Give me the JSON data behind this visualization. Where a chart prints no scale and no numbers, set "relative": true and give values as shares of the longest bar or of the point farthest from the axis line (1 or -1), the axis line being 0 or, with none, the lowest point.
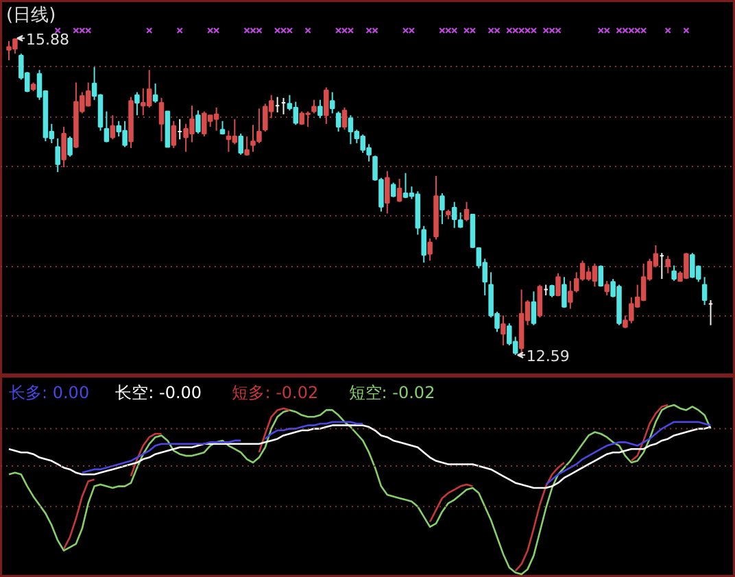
{
  "chart_data": [
    {
      "type": "candlestick",
      "title": "(日线)",
      "grid": "y",
      "tick_labels": false,
      "ylim": [
        12.37,
        16.27
      ],
      "yticks": [
        {
          "value": 12.99,
          "label": null
        },
        {
          "value": 13.51,
          "label": null
        },
        {
          "value": 14.03,
          "label": null
        },
        {
          "value": 14.55,
          "label": null
        },
        {
          "value": 15.06,
          "label": null
        },
        {
          "value": 15.58,
          "label": null
        }
      ],
      "categories": [
        null,
        null,
        null,
        null,
        null,
        null,
        null,
        null,
        null,
        null,
        null,
        null,
        null,
        null,
        null,
        null,
        null,
        null,
        null,
        null,
        null,
        null,
        null,
        null,
        null,
        null,
        null,
        null,
        null,
        null,
        null,
        null,
        null,
        null,
        null,
        null,
        null,
        null,
        null,
        null,
        null,
        null,
        null,
        null,
        null,
        null,
        null,
        null,
        null,
        null,
        null,
        null,
        null,
        null,
        null,
        null,
        null,
        null,
        null,
        null,
        null,
        null,
        null,
        null,
        null,
        null,
        null,
        null,
        null,
        null,
        null,
        null,
        null,
        null,
        null,
        null,
        null,
        null,
        null,
        null,
        null,
        null,
        null,
        null,
        null,
        null,
        null,
        null,
        null,
        null,
        null,
        null,
        null,
        null,
        null,
        null,
        null,
        null,
        null,
        null,
        null,
        null,
        null,
        null,
        null,
        null,
        null,
        null,
        null,
        null,
        null,
        null,
        null,
        null,
        null,
        null
      ],
      "ohlc": [
        [
          15.76,
          15.85,
          15.65,
          15.79
        ],
        [
          15.77,
          15.88,
          15.72,
          15.87
        ],
        [
          15.7,
          15.72,
          15.45,
          15.47
        ],
        [
          15.52,
          15.53,
          15.32,
          15.33
        ],
        [
          15.35,
          15.42,
          15.33,
          15.4
        ],
        [
          15.51,
          15.55,
          15.24,
          15.27
        ],
        [
          15.33,
          15.34,
          14.81,
          14.85
        ],
        [
          14.91,
          14.99,
          14.79,
          14.84
        ],
        [
          14.75,
          14.84,
          14.49,
          14.57
        ],
        [
          14.62,
          14.96,
          14.54,
          14.89
        ],
        [
          14.84,
          14.86,
          14.65,
          14.67
        ],
        [
          14.75,
          15.42,
          14.74,
          15.22
        ],
        [
          15.12,
          15.32,
          15.1,
          15.28
        ],
        [
          15.18,
          15.42,
          15.17,
          15.33
        ],
        [
          15.41,
          15.58,
          15.24,
          15.28
        ],
        [
          15.29,
          15.3,
          14.92,
          14.96
        ],
        [
          14.94,
          15.12,
          14.8,
          14.81
        ],
        [
          14.85,
          15.08,
          14.83,
          14.97
        ],
        [
          14.97,
          15.02,
          14.86,
          14.91
        ],
        [
          14.92,
          15.02,
          14.75,
          14.77
        ],
        [
          14.81,
          15.27,
          14.74,
          15.23
        ],
        [
          15.29,
          15.32,
          15.08,
          15.21
        ],
        [
          15.18,
          15.36,
          15.08,
          15.21
        ],
        [
          15.18,
          15.55,
          15.16,
          15.35
        ],
        [
          15.29,
          15.41,
          15.21,
          15.23
        ],
        [
          14.99,
          15.26,
          14.81,
          15.21
        ],
        [
          15.12,
          15.12,
          14.75,
          14.75
        ],
        [
          14.77,
          15.02,
          14.74,
          14.97
        ],
        [
          14.91,
          15.04,
          14.83,
          14.91
        ],
        [
          14.85,
          14.99,
          14.7,
          14.94
        ],
        [
          14.89,
          15.18,
          14.8,
          15.04
        ],
        [
          15.08,
          15.13,
          14.89,
          14.91
        ],
        [
          14.89,
          15.12,
          14.86,
          15.1
        ],
        [
          15.02,
          15.08,
          14.96,
          15.08
        ],
        [
          15.04,
          15.16,
          14.92,
          15.09
        ],
        [
          14.93,
          15.02,
          14.88,
          14.89
        ],
        [
          14.83,
          14.92,
          14.7,
          14.86
        ],
        [
          14.8,
          15.04,
          14.78,
          14.86
        ],
        [
          14.86,
          14.89,
          14.67,
          14.69
        ],
        [
          14.67,
          14.86,
          14.66,
          14.72
        ],
        [
          14.77,
          14.98,
          14.7,
          14.81
        ],
        [
          14.81,
          15.15,
          14.79,
          14.91
        ],
        [
          14.93,
          15.2,
          14.91,
          15.17
        ],
        [
          15.12,
          15.29,
          15.05,
          15.23
        ],
        [
          15.18,
          15.27,
          15.11,
          15.18
        ],
        [
          15.21,
          15.26,
          15.09,
          15.21
        ],
        [
          15.2,
          15.29,
          15.13,
          15.15
        ],
        [
          15.16,
          15.22,
          14.98,
          15.0
        ],
        [
          14.99,
          15.12,
          14.98,
          15.1
        ],
        [
          15.09,
          15.12,
          14.96,
          15.1
        ],
        [
          15.12,
          15.24,
          15.1,
          15.17
        ],
        [
          15.17,
          15.24,
          15.05,
          15.08
        ],
        [
          15.08,
          15.37,
          14.99,
          15.34
        ],
        [
          15.23,
          15.32,
          15.1,
          15.15
        ],
        [
          15.1,
          15.12,
          14.91,
          14.96
        ],
        [
          14.96,
          15.16,
          14.93,
          15.13
        ],
        [
          15.05,
          15.08,
          14.78,
          14.91
        ],
        [
          14.91,
          14.93,
          14.79,
          14.84
        ],
        [
          14.86,
          14.88,
          14.69,
          14.72
        ],
        [
          14.74,
          14.78,
          14.6,
          14.67
        ],
        [
          14.65,
          14.66,
          14.4,
          14.41
        ],
        [
          14.41,
          14.43,
          14.08,
          14.13
        ],
        [
          14.17,
          14.5,
          14.06,
          14.43
        ],
        [
          14.36,
          14.38,
          14.23,
          14.24
        ],
        [
          14.19,
          14.42,
          14.18,
          14.32
        ],
        [
          14.27,
          14.48,
          14.22,
          14.23
        ],
        [
          14.27,
          14.34,
          14.21,
          14.24
        ],
        [
          14.26,
          14.29,
          13.84,
          13.91
        ],
        [
          13.89,
          13.93,
          13.55,
          13.63
        ],
        [
          13.64,
          13.8,
          13.57,
          13.76
        ],
        [
          13.82,
          14.45,
          13.79,
          14.24
        ],
        [
          14.24,
          14.27,
          13.95,
          14.1
        ],
        [
          14.05,
          14.1,
          14.0,
          14.08
        ],
        [
          14.12,
          14.18,
          13.91,
          14.0
        ],
        [
          13.99,
          14.07,
          13.91,
          13.92
        ],
        [
          14.0,
          14.18,
          13.98,
          14.1
        ],
        [
          14.05,
          14.05,
          13.7,
          13.71
        ],
        [
          13.7,
          13.71,
          13.49,
          13.52
        ],
        [
          13.55,
          13.59,
          13.21,
          13.35
        ],
        [
          13.32,
          13.45,
          12.98,
          13.0
        ],
        [
          13.02,
          13.04,
          12.83,
          12.87
        ],
        [
          12.81,
          13.0,
          12.69,
          12.91
        ],
        [
          12.89,
          12.92,
          12.69,
          12.71
        ],
        [
          12.73,
          12.78,
          12.59,
          12.61
        ],
        [
          12.66,
          13.27,
          12.61,
          13.02
        ],
        [
          12.95,
          13.16,
          12.9,
          13.14
        ],
        [
          13.14,
          13.25,
          12.9,
          12.92
        ],
        [
          13.0,
          13.32,
          12.98,
          13.3
        ],
        [
          13.27,
          13.32,
          13.21,
          13.27
        ],
        [
          13.31,
          13.32,
          13.19,
          13.21
        ],
        [
          13.21,
          13.44,
          13.2,
          13.4
        ],
        [
          13.32,
          13.4,
          13.08,
          13.09
        ],
        [
          13.14,
          13.36,
          13.07,
          13.25
        ],
        [
          13.26,
          13.45,
          13.24,
          13.38
        ],
        [
          13.38,
          13.57,
          13.36,
          13.54
        ],
        [
          13.38,
          13.5,
          13.36,
          13.45
        ],
        [
          13.36,
          13.54,
          13.3,
          13.51
        ],
        [
          13.51,
          13.52,
          13.3,
          13.31
        ],
        [
          13.25,
          13.36,
          13.21,
          13.32
        ],
        [
          13.35,
          13.38,
          13.19,
          13.2
        ],
        [
          13.3,
          13.32,
          12.9,
          12.92
        ],
        [
          12.88,
          13.0,
          12.87,
          12.95
        ],
        [
          12.95,
          13.19,
          12.92,
          13.12
        ],
        [
          13.09,
          13.32,
          13.08,
          13.19
        ],
        [
          13.16,
          13.54,
          13.15,
          13.4
        ],
        [
          13.38,
          13.59,
          13.36,
          13.56
        ],
        [
          13.52,
          13.73,
          13.5,
          13.64
        ],
        [
          13.62,
          13.65,
          13.38,
          13.62
        ],
        [
          13.51,
          13.62,
          13.44,
          13.58
        ],
        [
          13.46,
          13.52,
          13.36,
          13.38
        ],
        [
          13.36,
          13.46,
          13.35,
          13.44
        ],
        [
          13.39,
          13.65,
          13.38,
          13.64
        ],
        [
          13.63,
          13.65,
          13.39,
          13.4
        ],
        [
          13.51,
          13.52,
          13.35,
          13.38
        ],
        [
          13.32,
          13.4,
          13.11,
          13.16
        ],
        [
          13.12,
          13.16,
          12.9,
          13.12
        ]
      ],
      "colors": [
        "#d84c4c",
        "#d84c4c",
        "#54e4e4",
        "#54e4e4",
        "#d84c4c",
        "#54e4e4",
        "#54e4e4",
        "#54e4e4",
        "#54e4e4",
        "#d84c4c",
        "#54e4e4",
        "#d84c4c",
        "#d84c4c",
        "#d84c4c",
        "#54e4e4",
        "#54e4e4",
        "#54e4e4",
        "#d84c4c",
        "#54e4e4",
        "#54e4e4",
        "#d84c4c",
        "#54e4e4",
        "#d84c4c",
        "#d84c4c",
        "#54e4e4",
        "#d84c4c",
        "#54e4e4",
        "#d84c4c",
        "#f0f0f0",
        "#d84c4c",
        "#d84c4c",
        "#54e4e4",
        "#d84c4c",
        "#d84c4c",
        "#d84c4c",
        "#54e4e4",
        "#d84c4c",
        "#d84c4c",
        "#54e4e4",
        "#d84c4c",
        "#d84c4c",
        "#d84c4c",
        "#d84c4c",
        "#d84c4c",
        "#f0f0f0",
        "#f0f0f0",
        "#54e4e4",
        "#54e4e4",
        "#d84c4c",
        "#d84c4c",
        "#d84c4c",
        "#54e4e4",
        "#d84c4c",
        "#54e4e4",
        "#54e4e4",
        "#d84c4c",
        "#54e4e4",
        "#54e4e4",
        "#54e4e4",
        "#54e4e4",
        "#54e4e4",
        "#54e4e4",
        "#d84c4c",
        "#54e4e4",
        "#d84c4c",
        "#54e4e4",
        "#54e4e4",
        "#54e4e4",
        "#54e4e4",
        "#d84c4c",
        "#d84c4c",
        "#54e4e4",
        "#d84c4c",
        "#54e4e4",
        "#54e4e4",
        "#d84c4c",
        "#54e4e4",
        "#54e4e4",
        "#54e4e4",
        "#54e4e4",
        "#54e4e4",
        "#d84c4c",
        "#54e4e4",
        "#54e4e4",
        "#d84c4c",
        "#d84c4c",
        "#54e4e4",
        "#d84c4c",
        "#f0f0f0",
        "#54e4e4",
        "#d84c4c",
        "#54e4e4",
        "#d84c4c",
        "#d84c4c",
        "#d84c4c",
        "#d84c4c",
        "#d84c4c",
        "#54e4e4",
        "#d84c4c",
        "#54e4e4",
        "#54e4e4",
        "#d84c4c",
        "#d84c4c",
        "#d84c4c",
        "#d84c4c",
        "#d84c4c",
        "#d84c4c",
        "#f0f0f0",
        "#d84c4c",
        "#54e4e4",
        "#d84c4c",
        "#d84c4c",
        "#54e4e4",
        "#54e4e4",
        "#54e4e4",
        "#f0f0f0"
      ],
      "series": [
        {
          "type": "scatter",
          "marker": "cross",
          "color": "#c048e0",
          "values": [
            null,
            null,
            null,
            null,
            null,
            null,
            null,
            null,
            15.96,
            null,
            null,
            15.96,
            15.96,
            15.96,
            null,
            null,
            null,
            null,
            null,
            null,
            null,
            null,
            null,
            15.96,
            null,
            null,
            null,
            null,
            15.96,
            null,
            null,
            null,
            null,
            15.96,
            15.96,
            null,
            null,
            null,
            null,
            15.96,
            15.96,
            15.96,
            null,
            null,
            15.96,
            15.96,
            15.96,
            null,
            null,
            15.96,
            null,
            null,
            null,
            null,
            15.96,
            15.96,
            15.96,
            null,
            null,
            15.96,
            15.96,
            null,
            null,
            null,
            null,
            15.96,
            15.96,
            null,
            null,
            null,
            null,
            15.96,
            15.96,
            15.96,
            null,
            15.96,
            15.96,
            null,
            null,
            15.96,
            15.96,
            null,
            15.96,
            15.96,
            15.96,
            15.96,
            15.96,
            null,
            15.96,
            15.96,
            15.96,
            null,
            null,
            null,
            null,
            null,
            null,
            15.96,
            15.96,
            null,
            15.96,
            15.96,
            15.96,
            15.96,
            15.96,
            null,
            null,
            null,
            15.96,
            null,
            null,
            15.96,
            null,
            null,
            null,
            null
          ]
        }
      ],
      "annotations": [
        "15.88",
        "12.59"
      ]
    },
    {
      "type": "line",
      "relative": true,
      "tick_labels": false,
      "legend": "top left",
      "ref_lines": [
        {
          "axis": "y",
          "value": 0.4,
          "color": "#8a3434",
          "line_style": "dotted"
        },
        {
          "axis": "y",
          "value": 0.64,
          "color": "#8a3434",
          "line_style": "dotted"
        },
        {
          "axis": "y",
          "value": 0.86,
          "color": "#8a3434",
          "line_style": "dotted"
        }
      ],
      "categories": [
        null,
        null,
        null,
        null,
        null,
        null,
        null,
        null,
        null,
        null,
        null,
        null,
        null,
        null,
        null,
        null,
        null,
        null,
        null,
        null,
        null,
        null,
        null,
        null,
        null,
        null,
        null,
        null,
        null,
        null,
        null,
        null,
        null,
        null,
        null,
        null,
        null,
        null,
        null,
        null,
        null,
        null,
        null,
        null,
        null,
        null,
        null,
        null,
        null,
        null,
        null,
        null,
        null,
        null,
        null,
        null,
        null,
        null,
        null,
        null,
        null,
        null,
        null,
        null,
        null,
        null,
        null,
        null,
        null,
        null,
        null,
        null,
        null,
        null,
        null,
        null,
        null,
        null,
        null,
        null,
        null,
        null,
        null,
        null,
        null,
        null,
        null,
        null,
        null,
        null,
        null,
        null,
        null,
        null,
        null,
        null,
        null,
        null,
        null,
        null,
        null,
        null,
        null,
        null,
        null,
        null,
        null,
        null,
        null,
        null,
        null,
        null,
        null,
        null,
        null,
        null
      ],
      "series": [
        {
          "name": "长多: 0.00",
          "color": "#4a46e8",
          "values": [
            null,
            null,
            null,
            null,
            null,
            null,
            null,
            null,
            null,
            null,
            null,
            null,
            0.6,
            0.61,
            0.62,
            0.62,
            0.63,
            0.64,
            0.65,
            0.66,
            0.67,
            0.69,
            0.71,
            0.73,
            0.76,
            0.77,
            0.77,
            0.77,
            0.77,
            0.77,
            0.77,
            0.77,
            0.77,
            0.78,
            0.78,
            0.78,
            0.78,
            0.79,
            0.79,
            null,
            null,
            null,
            0.8,
            0.83,
            0.85,
            0.85,
            0.86,
            0.86,
            0.87,
            0.88,
            0.88,
            0.89,
            0.89,
            0.9,
            0.9,
            0.9,
            0.9,
            0.89,
            0.89,
            null,
            null,
            null,
            null,
            null,
            null,
            null,
            null,
            null,
            null,
            null,
            null,
            null,
            null,
            null,
            null,
            null,
            null,
            null,
            null,
            null,
            null,
            null,
            null,
            null,
            null,
            null,
            null,
            null,
            0.53,
            0.56,
            0.59,
            0.61,
            0.63,
            0.65,
            0.68,
            0.7,
            0.72,
            0.74,
            0.76,
            0.77,
            0.78,
            0.78,
            0.77,
            0.76,
            0.78,
            0.8,
            0.83,
            0.86,
            0.88,
            0.9,
            0.9,
            0.9,
            0.9,
            0.9,
            0.89,
            0.88
          ]
        },
        {
          "name": "长空: -0.00",
          "color": "#ffffff",
          "values": [
            0.74,
            0.73,
            0.72,
            0.72,
            0.71,
            0.69,
            0.68,
            0.67,
            0.65,
            0.63,
            0.62,
            0.6,
            0.59,
            0.59,
            0.59,
            0.6,
            0.61,
            0.62,
            0.63,
            0.64,
            0.65,
            0.66,
            0.68,
            0.69,
            0.71,
            0.72,
            0.73,
            0.74,
            0.75,
            0.75,
            0.75,
            0.76,
            0.77,
            0.77,
            0.77,
            0.77,
            0.77,
            0.77,
            0.77,
            0.77,
            0.77,
            0.77,
            0.78,
            0.79,
            0.8,
            0.82,
            0.83,
            0.84,
            0.85,
            0.85,
            0.86,
            0.86,
            0.87,
            0.88,
            0.88,
            0.88,
            0.88,
            0.88,
            0.88,
            0.87,
            0.85,
            0.82,
            0.81,
            0.79,
            0.78,
            0.77,
            0.76,
            0.75,
            0.72,
            0.69,
            0.67,
            0.66,
            0.65,
            0.65,
            0.65,
            0.65,
            0.65,
            0.64,
            0.63,
            0.62,
            0.6,
            0.58,
            0.56,
            0.54,
            0.53,
            0.52,
            0.51,
            0.51,
            0.51,
            0.52,
            0.54,
            0.57,
            0.59,
            0.61,
            0.63,
            0.65,
            0.67,
            0.69,
            0.71,
            0.72,
            0.72,
            0.73,
            0.74,
            0.74,
            0.74,
            0.76,
            0.77,
            0.79,
            0.8,
            0.82,
            0.83,
            0.84,
            0.85,
            0.86,
            0.86,
            0.87
          ]
        },
        {
          "name": "短多: -0.02",
          "color": "#c83838",
          "values": [
            null,
            null,
            null,
            null,
            null,
            null,
            null,
            null,
            null,
            0.15,
            0.22,
            0.33,
            0.46,
            0.55,
            0.56,
            null,
            null,
            null,
            null,
            null,
            0.58,
            0.68,
            0.76,
            0.81,
            0.83,
            0.83,
            null,
            null,
            null,
            null,
            null,
            null,
            null,
            null,
            null,
            null,
            null,
            null,
            null,
            null,
            null,
            0.72,
            0.83,
            0.93,
            0.97,
            0.98,
            0.97,
            null,
            null,
            null,
            null,
            null,
            null,
            null,
            null,
            null,
            null,
            null,
            null,
            null,
            null,
            null,
            null,
            null,
            null,
            null,
            null,
            null,
            null,
            0.31,
            0.38,
            0.45,
            0.48,
            0.5,
            0.52,
            0.53,
            0.52,
            null,
            null,
            null,
            null,
            null,
            null,
            0.02,
            0.06,
            0.14,
            0.27,
            0.41,
            0.52,
            0.59,
            0.63,
            0.66,
            null,
            null,
            null,
            null,
            null,
            null,
            null,
            null,
            null,
            null,
            0.67,
            0.7,
            0.79,
            0.89,
            0.95,
            0.99,
            1.0,
            null,
            null,
            null,
            null,
            null,
            null,
            null
          ]
        },
        {
          "name": "短空: -0.02",
          "color": "#86d068",
          "values": [
            0.59,
            0.6,
            0.59,
            0.52,
            0.46,
            0.41,
            0.36,
            0.29,
            0.2,
            0.14,
            0.16,
            0.18,
            0.27,
            0.42,
            0.52,
            0.53,
            0.52,
            0.51,
            0.52,
            0.52,
            0.54,
            0.63,
            0.71,
            0.77,
            0.81,
            0.82,
            0.79,
            0.73,
            0.71,
            0.7,
            0.7,
            0.71,
            0.72,
            0.76,
            0.78,
            0.79,
            0.76,
            0.74,
            0.72,
            0.68,
            0.66,
            0.69,
            0.75,
            0.86,
            0.93,
            0.96,
            0.97,
            0.96,
            0.94,
            0.93,
            0.93,
            0.94,
            0.97,
            0.97,
            0.94,
            0.9,
            0.87,
            0.83,
            0.79,
            0.72,
            0.63,
            0.52,
            0.47,
            0.46,
            0.45,
            0.44,
            0.43,
            0.4,
            0.34,
            0.28,
            0.3,
            0.37,
            0.42,
            0.44,
            0.47,
            0.5,
            0.51,
            0.48,
            0.4,
            0.32,
            0.22,
            0.12,
            0.04,
            0.01,
            0.0,
            0.03,
            0.11,
            0.25,
            0.39,
            0.51,
            0.59,
            0.63,
            0.67,
            0.72,
            0.77,
            0.82,
            0.84,
            0.83,
            0.81,
            0.78,
            0.76,
            0.7,
            0.66,
            0.67,
            0.72,
            0.8,
            0.9,
            0.97,
            0.99,
            1.0,
            0.98,
            0.97,
            0.99,
            0.97,
            0.94,
            0.86
          ]
        }
      ]
    }
  ]
}
